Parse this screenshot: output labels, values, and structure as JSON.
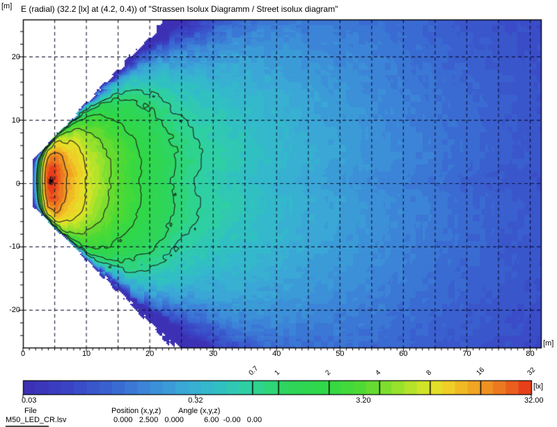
{
  "title": "E (radial) (32.2 [lx] at (4.2, 0.4)) of \"Strassen Isolux Diagramm / Street isolux diagram\"",
  "axis_units": {
    "y": "[m]",
    "x": "[m]"
  },
  "footer": {
    "file_label": "File",
    "file_value": "M50_LED_CR.lsv",
    "position_label": "Position (x,y,z)",
    "position_value": "0.000   2.500   0.000",
    "angle_label": "Angle (x,y,z)",
    "angle_value": "6.00  -0.00   0.00"
  },
  "chart_data": {
    "type": "heatmap",
    "subtype": "isolux-contour-diagram",
    "title": "E (radial) (32.2 [lx] at (4.2, 0.4)) of \"Strassen Isolux Diagramm / Street isolux diagram\"",
    "xlabel": "[m]",
    "ylabel": "[m]",
    "x_range": [
      0,
      81.7
    ],
    "y_range": [
      -25.9,
      25.9
    ],
    "x_ticks": [
      0,
      10,
      20,
      30,
      40,
      50,
      60,
      70,
      80
    ],
    "y_ticks": [
      -20,
      -10,
      0,
      10,
      20
    ],
    "x_minor_step": 1,
    "y_minor_step": 2,
    "grid": {
      "x_step": 5,
      "y_step": 10,
      "style": "dashed"
    },
    "peak": {
      "value_lx": 32.2,
      "x_m": 4.2,
      "y_m": 0.4
    },
    "contour_levels_lx": [
      0.7,
      1,
      2,
      4,
      8,
      16,
      32
    ],
    "falloff_profile_y0": {
      "x_m": [
        1.45,
        1.8,
        2.2,
        3.0,
        3.8,
        4.4,
        5.2,
        6.8,
        10,
        14,
        19,
        24.6,
        29,
        35,
        45,
        55,
        65,
        75,
        83
      ],
      "E_lx": [
        0.03,
        0.18,
        0.9,
        8,
        26,
        32.2,
        29,
        16,
        8,
        4,
        2,
        1,
        0.68,
        0.5,
        0.3,
        0.2,
        0.135,
        0.095,
        0.075
      ]
    },
    "beam": {
      "tip_x_m": 1.45,
      "center_y_m": 0.4,
      "top_intercept_m": 3.3,
      "top_slope": 1.06,
      "bottom_intercept_m": 3.9,
      "bottom_slope": 1.0
    },
    "lateral": {
      "p_base": 1.1,
      "p_rate": 0.08,
      "p_ref_x": 8,
      "p_min": 1.1,
      "p_max": 2.6,
      "dimple_depth": 0.12,
      "dimple_halfwidth_m": 2.2,
      "dimple_start_x_m": 10,
      "dimple_ramp_m": 8
    },
    "noise": {
      "cell_m": 1,
      "log10_amp_fill": 0.03,
      "log10_amp_contour": 0.025
    },
    "colorbar": {
      "unit": "[lx]",
      "scale": "log",
      "min_lx": 0.03,
      "max_lx": 32.0,
      "steps": 40,
      "top_tick_labels": [
        "0.7",
        "1",
        "2",
        "4",
        "8",
        "16",
        "32"
      ],
      "top_tick_values": [
        0.7,
        1,
        2,
        4,
        8,
        16,
        32
      ],
      "bottom_tick_labels": [
        "0.03",
        "0.32",
        "3.20",
        "32.00"
      ],
      "bottom_tick_values": [
        0.03,
        0.32,
        3.2,
        32.0
      ],
      "stops": [
        [
          0.0,
          "#3c2eb2"
        ],
        [
          0.09,
          "#3a44c4"
        ],
        [
          0.17,
          "#3a62d0"
        ],
        [
          0.25,
          "#3c8ad8"
        ],
        [
          0.32,
          "#3aaad6"
        ],
        [
          0.38,
          "#31bec6"
        ],
        [
          0.44,
          "#2fd0a2"
        ],
        [
          0.48,
          "#2ed57d"
        ],
        [
          0.52,
          "#2dd55b"
        ],
        [
          0.6,
          "#31d746"
        ],
        [
          0.66,
          "#4cda34"
        ],
        [
          0.7,
          "#70dc2f"
        ],
        [
          0.75,
          "#a5e22b"
        ],
        [
          0.8,
          "#e0e528"
        ],
        [
          0.84,
          "#f0ce27"
        ],
        [
          0.88,
          "#f0ab24"
        ],
        [
          0.92,
          "#ee8b21"
        ],
        [
          0.96,
          "#ea611e"
        ],
        [
          1.0,
          "#e52f17"
        ]
      ]
    }
  }
}
